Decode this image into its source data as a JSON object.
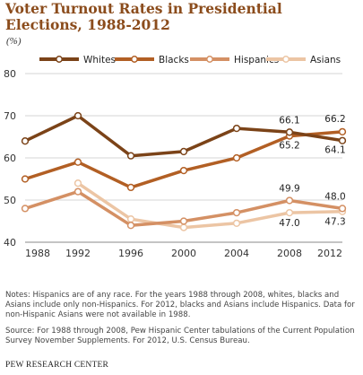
{
  "chart_data": {
    "type": "line",
    "title": "Voter Turnout Rates in Presidential Elections, 1988-2012",
    "unit_label": "(%)",
    "x": [
      1988,
      1992,
      1996,
      2000,
      2004,
      2008,
      2012
    ],
    "ylim": [
      40,
      80
    ],
    "yticks": [
      40,
      50,
      60,
      70,
      80
    ],
    "grid": true,
    "legend_position": "top",
    "series": [
      {
        "name": "Whites",
        "color": "#7b4318",
        "values": [
          64.0,
          70.0,
          60.5,
          61.5,
          67.0,
          66.1,
          64.1
        ]
      },
      {
        "name": "Blacks",
        "color": "#b25f24",
        "values": [
          55.0,
          59.0,
          53.0,
          57.0,
          60.0,
          65.2,
          66.2
        ]
      },
      {
        "name": "Hispanics",
        "color": "#d49064",
        "values": [
          48.0,
          52.0,
          44.0,
          45.0,
          47.0,
          49.9,
          48.0
        ]
      },
      {
        "name": "Asians",
        "color": "#ecc5a4",
        "values": [
          null,
          54.0,
          45.5,
          43.5,
          44.5,
          47.0,
          47.3
        ]
      }
    ],
    "data_labels": [
      {
        "series": "Whites",
        "x": 2008,
        "text": "66.1"
      },
      {
        "series": "Blacks",
        "x": 2012,
        "text": "66.2"
      },
      {
        "series": "Blacks",
        "x": 2008,
        "text": "65.2"
      },
      {
        "series": "Whites",
        "x": 2012,
        "text": "64.1"
      },
      {
        "series": "Hispanics",
        "x": 2008,
        "text": "49.9"
      },
      {
        "series": "Hispanics",
        "x": 2012,
        "text": "48.0"
      },
      {
        "series": "Asians",
        "x": 2008,
        "text": "47.0"
      },
      {
        "series": "Asians",
        "x": 2012,
        "text": "47.3"
      }
    ]
  },
  "notes": "Notes: Hispanics are of any race. For the years 1988 through 2008, whites, blacks and Asians include only non-Hispanics. For 2012, blacks and Asians include Hispanics. Data for non-Hispanic Asians were not available in 1988.",
  "source": "Source: For 1988 through 2008, Pew Hispanic Center tabulations of the Current Population Survey November Supplements. For 2012, U.S. Census Bureau.",
  "credit": "PEW RESEARCH CENTER"
}
